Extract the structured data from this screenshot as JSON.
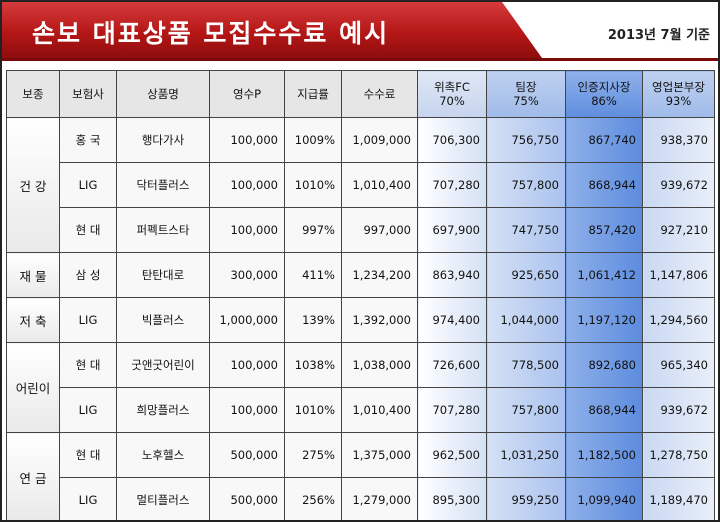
{
  "title": "손보 대표상품 모집수수료 예시",
  "date": "2013년 7월 기준",
  "headers": [
    "보종",
    "보험사",
    "상품명",
    "영수P",
    "지급률",
    "수수료",
    "위촉FC\n70%",
    "팀장\n75%",
    "인증지사장\n86%",
    "영업본부장\n93%"
  ],
  "groups": [
    {
      "name": "건 강",
      "rows": [
        [
          "홍 국",
          "행다가사",
          "100,000",
          "1009%",
          "1,009,000",
          "706,300",
          "756,750",
          "867,740",
          "938,370"
        ],
        [
          "LIG",
          "닥터플러스",
          "100,000",
          "1010%",
          "1,010,400",
          "707,280",
          "757,800",
          "868,944",
          "939,672"
        ],
        [
          "현 대",
          "퍼펙트스타",
          "100,000",
          "997%",
          "997,000",
          "697,900",
          "747,750",
          "857,420",
          "927,210"
        ]
      ]
    },
    {
      "name": "재 물",
      "rows": [
        [
          "삼 성",
          "탄탄대로",
          "300,000",
          "411%",
          "1,234,200",
          "863,940",
          "925,650",
          "1,061,412",
          "1,147,806"
        ]
      ]
    },
    {
      "name": "저 축",
      "rows": [
        [
          "LIG",
          "빅플러스",
          "1,000,000",
          "139%",
          "1,392,000",
          "974,400",
          "1,044,000",
          "1,197,120",
          "1,294,560"
        ]
      ]
    },
    {
      "name": "어린이",
      "rows": [
        [
          "현 대",
          "굿앤굿어린이",
          "100,000",
          "1038%",
          "1,038,000",
          "726,600",
          "778,500",
          "892,680",
          "965,340"
        ],
        [
          "LIG",
          "희망플러스",
          "100,000",
          "1010%",
          "1,010,400",
          "707,280",
          "757,800",
          "868,944",
          "939,672"
        ]
      ]
    },
    {
      "name": "연 금",
      "rows": [
        [
          "현 대",
          "노후헬스",
          "500,000",
          "275%",
          "1,375,000",
          "962,500",
          "1,031,250",
          "1,182,500",
          "1,278,750"
        ],
        [
          "LIG",
          "멀티플러스",
          "500,000",
          "256%",
          "1,279,000",
          "895,300",
          "959,250",
          "1,099,940",
          "1,189,470"
        ]
      ]
    }
  ]
}
